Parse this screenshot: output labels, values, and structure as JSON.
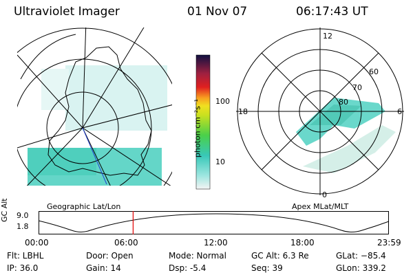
{
  "header": {
    "instrument": "Ultraviolet Imager",
    "date": "01 Nov 07",
    "time": "06:17:43 UT"
  },
  "colorbar": {
    "label": "photon cm⁻²s⁻¹",
    "ticks": [
      "100",
      "10"
    ]
  },
  "geo_map": {
    "caption": "Geographic Lat/Lon"
  },
  "polar_plot": {
    "caption": "Apex MLat/MLT",
    "mlt_labels": {
      "top": "12",
      "left": "18",
      "right": "6",
      "bottom": "0"
    },
    "lat_labels": [
      "60",
      "70",
      "80"
    ]
  },
  "altitude_plot": {
    "ylabel": "GC Alt",
    "yticks": [
      "9.0",
      "1.8"
    ],
    "xticks": [
      "00:00",
      "06:00",
      "12:00",
      "18:00",
      "23:59"
    ],
    "current_time_fraction": 0.27
  },
  "info": {
    "flt": "Flt: LBHL",
    "ip": "IP: 36.0",
    "door": "Door: Open",
    "gain": "Gain: 14",
    "mode": "Mode: Normal",
    "dsp": "Dsp:    -5.4",
    "gc_alt": "GC Alt: 6.3 Re",
    "seq": "Seq: 39",
    "glat": "GLat: −85.4",
    "glon": "GLon: 339.2"
  },
  "colors": {
    "current_time_line": "#e00000",
    "map_track": "#2040d0"
  }
}
